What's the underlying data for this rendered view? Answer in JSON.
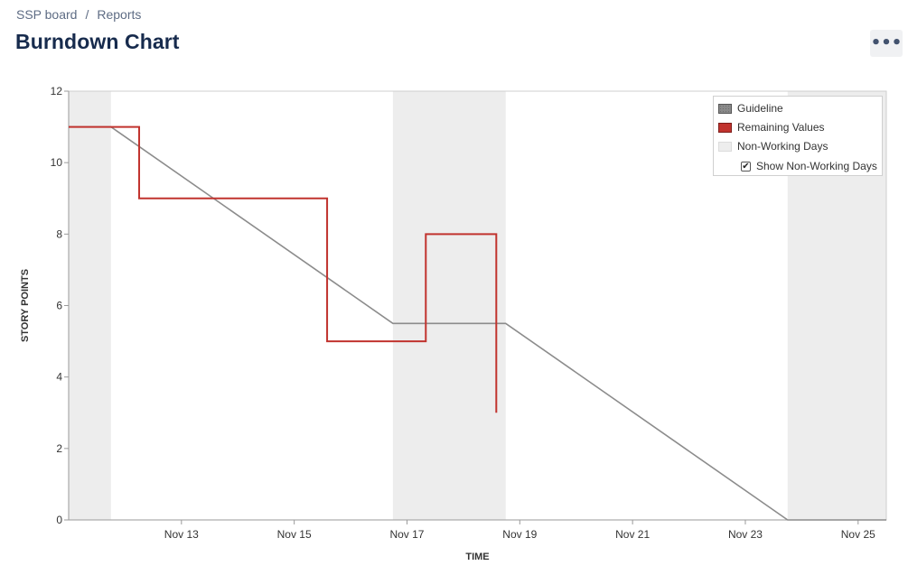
{
  "breadcrumb": {
    "board": "SSP board",
    "separator": "/",
    "current": "Reports"
  },
  "page": {
    "title": "Burndown Chart",
    "more_label": "•••"
  },
  "legend": {
    "guideline": "Guideline",
    "remaining": "Remaining Values",
    "non_working": "Non-Working Days",
    "toggle_label": "Show Non-Working Days",
    "toggle_checked": true
  },
  "chart_data": {
    "type": "line",
    "xlabel": "TIME",
    "ylabel": "STORY POINTS",
    "ylim": [
      0,
      12
    ],
    "xlim": [
      "2023-11-11 00:00",
      "2023-11-25 12:00"
    ],
    "y_ticks": [
      0,
      2,
      4,
      6,
      8,
      10,
      12
    ],
    "x_ticks": [
      {
        "date": "2023-11-13",
        "label": "Nov 13"
      },
      {
        "date": "2023-11-15",
        "label": "Nov 15"
      },
      {
        "date": "2023-11-17",
        "label": "Nov 17"
      },
      {
        "date": "2023-11-19",
        "label": "Nov 19"
      },
      {
        "date": "2023-11-21",
        "label": "Nov 21"
      },
      {
        "date": "2023-11-23",
        "label": "Nov 23"
      },
      {
        "date": "2023-11-25",
        "label": "Nov 25"
      }
    ],
    "non_working_days": [
      [
        "2023-11-11 00:00",
        "2023-11-11 18:00"
      ],
      [
        "2023-11-16 18:00",
        "2023-11-18 18:00"
      ],
      [
        "2023-11-23 18:00",
        "2023-11-25 12:00"
      ]
    ],
    "legend_position": "top-right",
    "colors": {
      "guideline": "#8c8c8c",
      "remaining": "#c1332e",
      "non_working": "#ededed"
    },
    "series": [
      {
        "name": "Guideline",
        "points": [
          {
            "x": "2023-11-11 00:00",
            "y": 11
          },
          {
            "x": "2023-11-11 18:00",
            "y": 11
          },
          {
            "x": "2023-11-16 18:00",
            "y": 5.5
          },
          {
            "x": "2023-11-18 18:00",
            "y": 5.5
          },
          {
            "x": "2023-11-23 18:00",
            "y": 0
          },
          {
            "x": "2023-11-25 12:00",
            "y": 0
          }
        ]
      },
      {
        "name": "Remaining Values",
        "step": true,
        "points": [
          {
            "x": "2023-11-11 00:00",
            "y": 11
          },
          {
            "x": "2023-11-12 06:00",
            "y": 9
          },
          {
            "x": "2023-11-15 14:00",
            "y": 5
          },
          {
            "x": "2023-11-17 08:00",
            "y": 8
          },
          {
            "x": "2023-11-18 14:00",
            "y": 3
          }
        ]
      }
    ]
  }
}
